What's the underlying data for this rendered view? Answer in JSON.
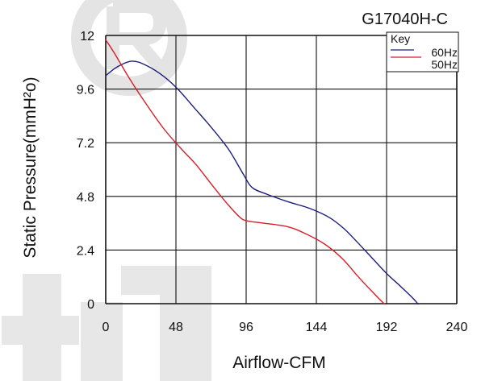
{
  "chart_data": {
    "type": "line",
    "title": "G17040H-C",
    "xlabel": "Airflow-CFM",
    "ylabel": "Static Pressure(mmH²o)",
    "xlim": [
      0,
      240
    ],
    "ylim": [
      0,
      12
    ],
    "x_ticks": [
      "0",
      "48",
      "96",
      "144",
      "192",
      "240"
    ],
    "y_ticks": [
      "0",
      "2.4",
      "4.8",
      "7.2",
      "9.6",
      "12"
    ],
    "grid": true,
    "legend": {
      "title": "Key",
      "placement": "top-right"
    },
    "series": [
      {
        "name": "60Hz",
        "color": "#1b1f7a",
        "points": [
          [
            0,
            10.2
          ],
          [
            8,
            10.6
          ],
          [
            18,
            10.85
          ],
          [
            28,
            10.65
          ],
          [
            40,
            10.15
          ],
          [
            50,
            9.55
          ],
          [
            60,
            8.8
          ],
          [
            72,
            7.9
          ],
          [
            84,
            6.9
          ],
          [
            94,
            5.8
          ],
          [
            100,
            5.2
          ],
          [
            110,
            4.9
          ],
          [
            125,
            4.55
          ],
          [
            140,
            4.25
          ],
          [
            153,
            3.85
          ],
          [
            163,
            3.35
          ],
          [
            172,
            2.75
          ],
          [
            182,
            2.05
          ],
          [
            192,
            1.35
          ],
          [
            202,
            0.75
          ],
          [
            212,
            0.1
          ],
          [
            220,
            -0.6
          ]
        ]
      },
      {
        "name": "50Hz",
        "color": "#d61f26",
        "points": [
          [
            0,
            11.8
          ],
          [
            6,
            11.2
          ],
          [
            16,
            10.1
          ],
          [
            28,
            8.9
          ],
          [
            40,
            7.8
          ],
          [
            52,
            6.9
          ],
          [
            62,
            6.2
          ],
          [
            74,
            5.2
          ],
          [
            84,
            4.4
          ],
          [
            92,
            3.85
          ],
          [
            97,
            3.7
          ],
          [
            108,
            3.6
          ],
          [
            124,
            3.45
          ],
          [
            136,
            3.15
          ],
          [
            150,
            2.65
          ],
          [
            162,
            2.0
          ],
          [
            172,
            1.25
          ],
          [
            182,
            0.55
          ],
          [
            192,
            -0.1
          ],
          [
            202,
            -0.6
          ]
        ]
      }
    ]
  }
}
